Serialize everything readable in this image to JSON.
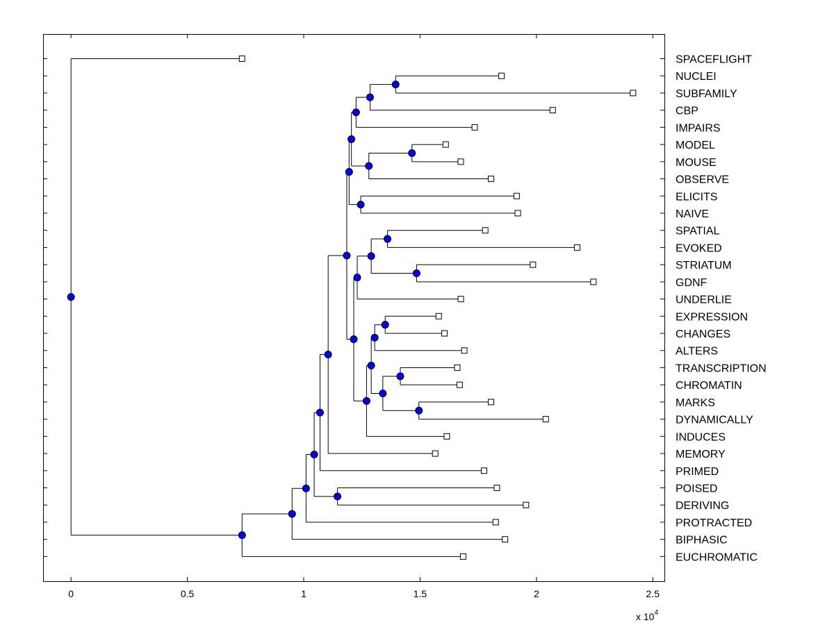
{
  "chart_data": {
    "type": "dendrogram",
    "title": "",
    "xlabel": "",
    "ylabel": "",
    "xlim": [
      -1200,
      25500
    ],
    "xticks": [
      0,
      5000,
      10000,
      15000,
      20000,
      25000
    ],
    "xtick_labels": [
      "0",
      "0.5",
      "1",
      "1.5",
      "2",
      "2.5"
    ],
    "x_multiplier_label": "x 10",
    "x_multiplier_exp": "4",
    "grid": false,
    "node_color": "#0000ff",
    "leaves": [
      {
        "name": "SPACEFLIGHT",
        "value": 7350
      },
      {
        "name": "NUCLEI",
        "value": 18500
      },
      {
        "name": "SUBFAMILY",
        "value": 24150
      },
      {
        "name": "CBP",
        "value": 20700
      },
      {
        "name": "IMPAIRS",
        "value": 17350
      },
      {
        "name": "MODEL",
        "value": 16100
      },
      {
        "name": "MOUSE",
        "value": 16750
      },
      {
        "name": "OBSERVE",
        "value": 18050
      },
      {
        "name": "ELICITS",
        "value": 19150
      },
      {
        "name": "NAIVE",
        "value": 19200
      },
      {
        "name": "SPATIAL",
        "value": 17800
      },
      {
        "name": "EVOKED",
        "value": 21750
      },
      {
        "name": "STRIATUM",
        "value": 19850
      },
      {
        "name": "GDNF",
        "value": 22450
      },
      {
        "name": "UNDERLIE",
        "value": 16750
      },
      {
        "name": "EXPRESSION",
        "value": 15800
      },
      {
        "name": "CHANGES",
        "value": 16050
      },
      {
        "name": "ALTERS",
        "value": 16900
      },
      {
        "name": "TRANSCRIPTION",
        "value": 16600
      },
      {
        "name": "CHROMATIN",
        "value": 16700
      },
      {
        "name": "MARKS",
        "value": 18050
      },
      {
        "name": "DYNAMICALLY",
        "value": 20400
      },
      {
        "name": "INDUCES",
        "value": 16150
      },
      {
        "name": "MEMORY",
        "value": 15650
      },
      {
        "name": "PRIMED",
        "value": 17750
      },
      {
        "name": "POISED",
        "value": 18300
      },
      {
        "name": "DERIVING",
        "value": 19550
      },
      {
        "name": "PROTRACTED",
        "value": 18250
      },
      {
        "name": "BIPHASIC",
        "value": 18650
      },
      {
        "name": "EUCHROMATIC",
        "value": 16850
      }
    ],
    "nodes": [
      {
        "id": "n1",
        "value": 13950,
        "children": [
          "NUCLEI",
          "SUBFAMILY"
        ]
      },
      {
        "id": "n2",
        "value": 12850,
        "children": [
          "n1",
          "CBP"
        ]
      },
      {
        "id": "n3",
        "value": 12250,
        "children": [
          "n2",
          "IMPAIRS"
        ]
      },
      {
        "id": "n4",
        "value": 14650,
        "children": [
          "MODEL",
          "MOUSE"
        ]
      },
      {
        "id": "n5",
        "value": 12800,
        "children": [
          "n4",
          "OBSERVE"
        ]
      },
      {
        "id": "n6",
        "value": 12050,
        "children": [
          "n3",
          "n5"
        ]
      },
      {
        "id": "n7",
        "value": 12450,
        "children": [
          "ELICITS",
          "NAIVE"
        ]
      },
      {
        "id": "n8",
        "value": 11950,
        "children": [
          "n6",
          "n7"
        ]
      },
      {
        "id": "n9",
        "value": 13600,
        "children": [
          "SPATIAL",
          "EVOKED"
        ]
      },
      {
        "id": "n10",
        "value": 14850,
        "children": [
          "STRIATUM",
          "GDNF"
        ]
      },
      {
        "id": "n11",
        "value": 12900,
        "children": [
          "n9",
          "n10"
        ]
      },
      {
        "id": "n12",
        "value": 12300,
        "children": [
          "n11",
          "UNDERLIE"
        ]
      },
      {
        "id": "n13",
        "value": 13500,
        "children": [
          "EXPRESSION",
          "CHANGES"
        ]
      },
      {
        "id": "n14",
        "value": 13050,
        "children": [
          "n13",
          "ALTERS"
        ]
      },
      {
        "id": "n15",
        "value": 14150,
        "children": [
          "TRANSCRIPTION",
          "CHROMATIN"
        ]
      },
      {
        "id": "n16",
        "value": 14950,
        "children": [
          "MARKS",
          "DYNAMICALLY"
        ]
      },
      {
        "id": "n17",
        "value": 13400,
        "children": [
          "n15",
          "n16"
        ]
      },
      {
        "id": "n18",
        "value": 12900,
        "children": [
          "n14",
          "n17"
        ]
      },
      {
        "id": "n19",
        "value": 12700,
        "children": [
          "n18",
          "INDUCES"
        ]
      },
      {
        "id": "n20",
        "value": 12150,
        "children": [
          "n12",
          "n19"
        ]
      },
      {
        "id": "n21",
        "value": 11850,
        "children": [
          "n8",
          "n20"
        ]
      },
      {
        "id": "n22",
        "value": 11050,
        "children": [
          "n21",
          "MEMORY"
        ]
      },
      {
        "id": "n23",
        "value": 10700,
        "children": [
          "n22",
          "PRIMED"
        ]
      },
      {
        "id": "n24",
        "value": 11450,
        "children": [
          "POISED",
          "DERIVING"
        ]
      },
      {
        "id": "n25",
        "value": 10450,
        "children": [
          "n23",
          "n24"
        ]
      },
      {
        "id": "n26",
        "value": 10100,
        "children": [
          "n25",
          "PROTRACTED"
        ]
      },
      {
        "id": "n27",
        "value": 9500,
        "children": [
          "n26",
          "BIPHASIC"
        ]
      },
      {
        "id": "n28",
        "value": 7350,
        "children": [
          "n27",
          "EUCHROMATIC"
        ]
      },
      {
        "id": "n29",
        "value": 0,
        "children": [
          "SPACEFLIGHT",
          "n28"
        ]
      }
    ]
  }
}
